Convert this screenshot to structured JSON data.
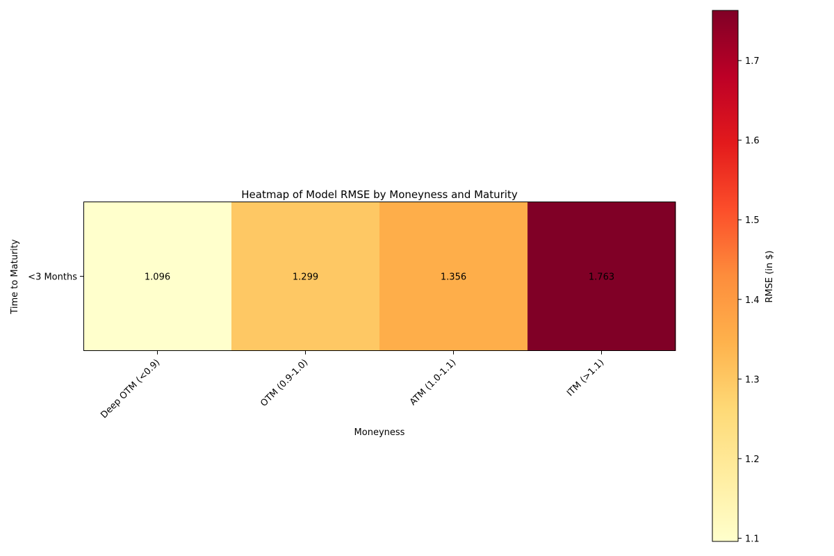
{
  "chart_data": {
    "type": "heatmap",
    "title": "Heatmap of Model RMSE by Moneyness and Maturity",
    "xlabel": "Moneyness",
    "ylabel": "Time to Maturity",
    "x_categories": [
      "Deep OTM (<0.9)",
      "OTM (0.9-1.0)",
      "ATM (1.0-1.1)",
      "ITM (>1.1)"
    ],
    "y_categories": [
      "<3 Months"
    ],
    "values": [
      [
        1.096,
        1.299,
        1.356,
        1.763
      ]
    ],
    "value_labels": [
      "1.096",
      "1.299",
      "1.356",
      "1.763"
    ],
    "colormap": "YlOrRd",
    "colorbar": {
      "label": "RMSE (in $)",
      "range": [
        1.096,
        1.763
      ],
      "ticks": [
        1.1,
        1.2,
        1.3,
        1.4,
        1.5,
        1.6,
        1.7
      ],
      "tick_labels": [
        "1.1",
        "1.2",
        "1.3",
        "1.4",
        "1.5",
        "1.6",
        "1.7"
      ]
    },
    "grid": false
  }
}
